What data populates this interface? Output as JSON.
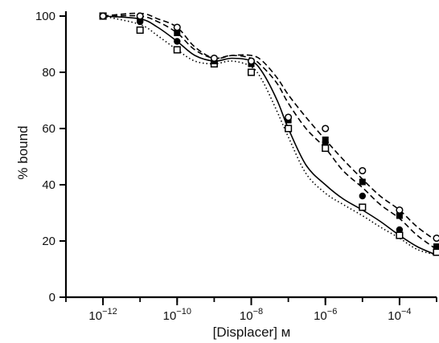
{
  "chart_data": {
    "type": "scatter",
    "xscale": "log",
    "xlabel": "[Displacer] м",
    "ylabel": "% bound",
    "xlim": [
      1e-13,
      0.001
    ],
    "ylim": [
      0,
      100
    ],
    "yticks": [
      0,
      20,
      40,
      60,
      80,
      100
    ],
    "xticks": [
      {
        "value": 1e-12,
        "base": "10",
        "exp": "−12"
      },
      {
        "value": 1e-10,
        "base": "10",
        "exp": "−10"
      },
      {
        "value": 1e-08,
        "base": "10",
        "exp": "−8"
      },
      {
        "value": 1e-06,
        "base": "10",
        "exp": "−6"
      },
      {
        "value": 0.0001,
        "base": "10",
        "exp": "−4"
      }
    ],
    "grid": false,
    "series": [
      {
        "marker": "filled-circle",
        "line": "solid",
        "points": [
          [
            1e-12,
            100
          ],
          [
            1e-11,
            98
          ],
          [
            1e-10,
            91
          ],
          [
            1e-09,
            85
          ],
          [
            1e-08,
            84
          ],
          [
            1e-07,
            64
          ],
          [
            1e-06,
            55
          ],
          [
            1e-05,
            36
          ],
          [
            0.0001,
            24
          ],
          [
            0.001,
            16
          ]
        ],
        "curve": [
          [
            1e-12,
            100
          ],
          [
            1e-11,
            99
          ],
          [
            3e-11,
            96
          ],
          [
            1e-10,
            91
          ],
          [
            3e-10,
            86
          ],
          [
            1e-09,
            84
          ],
          [
            3e-09,
            85
          ],
          [
            1e-08,
            84
          ],
          [
            2e-08,
            80
          ],
          [
            5e-08,
            70
          ],
          [
            1e-07,
            60
          ],
          [
            3e-07,
            47
          ],
          [
            1e-06,
            40
          ],
          [
            3e-06,
            35
          ],
          [
            1e-05,
            31
          ],
          [
            3e-05,
            27
          ],
          [
            0.0001,
            22
          ],
          [
            0.0003,
            18
          ],
          [
            0.001,
            15
          ]
        ]
      },
      {
        "marker": "open-square",
        "line": "dotted",
        "points": [
          [
            1e-12,
            100
          ],
          [
            1e-11,
            95
          ],
          [
            1e-10,
            88
          ],
          [
            1e-09,
            83
          ],
          [
            1e-08,
            80
          ],
          [
            1e-07,
            60
          ],
          [
            1e-06,
            53
          ],
          [
            1e-05,
            32
          ],
          [
            0.0001,
            22
          ],
          [
            0.001,
            16
          ]
        ],
        "curve": [
          [
            1e-12,
            100
          ],
          [
            1e-11,
            97
          ],
          [
            3e-11,
            93
          ],
          [
            1e-10,
            88
          ],
          [
            3e-10,
            84
          ],
          [
            1e-09,
            83
          ],
          [
            3e-09,
            84
          ],
          [
            1e-08,
            82
          ],
          [
            2e-08,
            77
          ],
          [
            5e-08,
            66
          ],
          [
            1e-07,
            57
          ],
          [
            3e-07,
            44
          ],
          [
            1e-06,
            37
          ],
          [
            3e-06,
            33
          ],
          [
            1e-05,
            29
          ],
          [
            3e-05,
            25
          ],
          [
            0.0001,
            21
          ],
          [
            0.0003,
            17
          ],
          [
            0.001,
            15
          ]
        ]
      },
      {
        "marker": "filled-square",
        "line": "dashed",
        "points": [
          [
            1e-12,
            100
          ],
          [
            1e-11,
            99
          ],
          [
            1e-10,
            94
          ],
          [
            1e-09,
            84
          ],
          [
            1e-08,
            83
          ],
          [
            1e-07,
            63
          ],
          [
            1e-06,
            56
          ],
          [
            1e-05,
            41
          ],
          [
            0.0001,
            29
          ],
          [
            0.001,
            18
          ]
        ],
        "curve": [
          [
            1e-12,
            100
          ],
          [
            1e-11,
            100
          ],
          [
            3e-11,
            98
          ],
          [
            1e-10,
            94
          ],
          [
            3e-10,
            88
          ],
          [
            1e-09,
            85
          ],
          [
            3e-09,
            86
          ],
          [
            1e-08,
            85
          ],
          [
            2e-08,
            82
          ],
          [
            5e-08,
            76
          ],
          [
            1e-07,
            69
          ],
          [
            3e-07,
            60
          ],
          [
            1e-06,
            53
          ],
          [
            3e-06,
            45
          ],
          [
            1e-05,
            39
          ],
          [
            3e-05,
            33
          ],
          [
            0.0001,
            28
          ],
          [
            0.0003,
            22
          ],
          [
            0.001,
            17
          ]
        ]
      },
      {
        "marker": "open-circle",
        "line": "dashed",
        "points": [
          [
            1e-12,
            100
          ],
          [
            1e-11,
            100
          ],
          [
            1e-10,
            96
          ],
          [
            1e-09,
            85
          ],
          [
            1e-08,
            84
          ],
          [
            1e-07,
            64
          ],
          [
            1e-06,
            60
          ],
          [
            1e-05,
            45
          ],
          [
            0.0001,
            31
          ],
          [
            0.001,
            21
          ]
        ],
        "curve": [
          [
            1e-12,
            100
          ],
          [
            1e-11,
            101
          ],
          [
            3e-11,
            99
          ],
          [
            1e-10,
            96
          ],
          [
            3e-10,
            89
          ],
          [
            1e-09,
            85
          ],
          [
            3e-09,
            86
          ],
          [
            1e-08,
            86
          ],
          [
            2e-08,
            84
          ],
          [
            5e-08,
            78
          ],
          [
            1e-07,
            72
          ],
          [
            3e-07,
            64
          ],
          [
            1e-06,
            56
          ],
          [
            3e-06,
            49
          ],
          [
            1e-05,
            42
          ],
          [
            3e-05,
            36
          ],
          [
            0.0001,
            31
          ],
          [
            0.0003,
            25
          ],
          [
            0.001,
            20
          ]
        ]
      }
    ]
  }
}
